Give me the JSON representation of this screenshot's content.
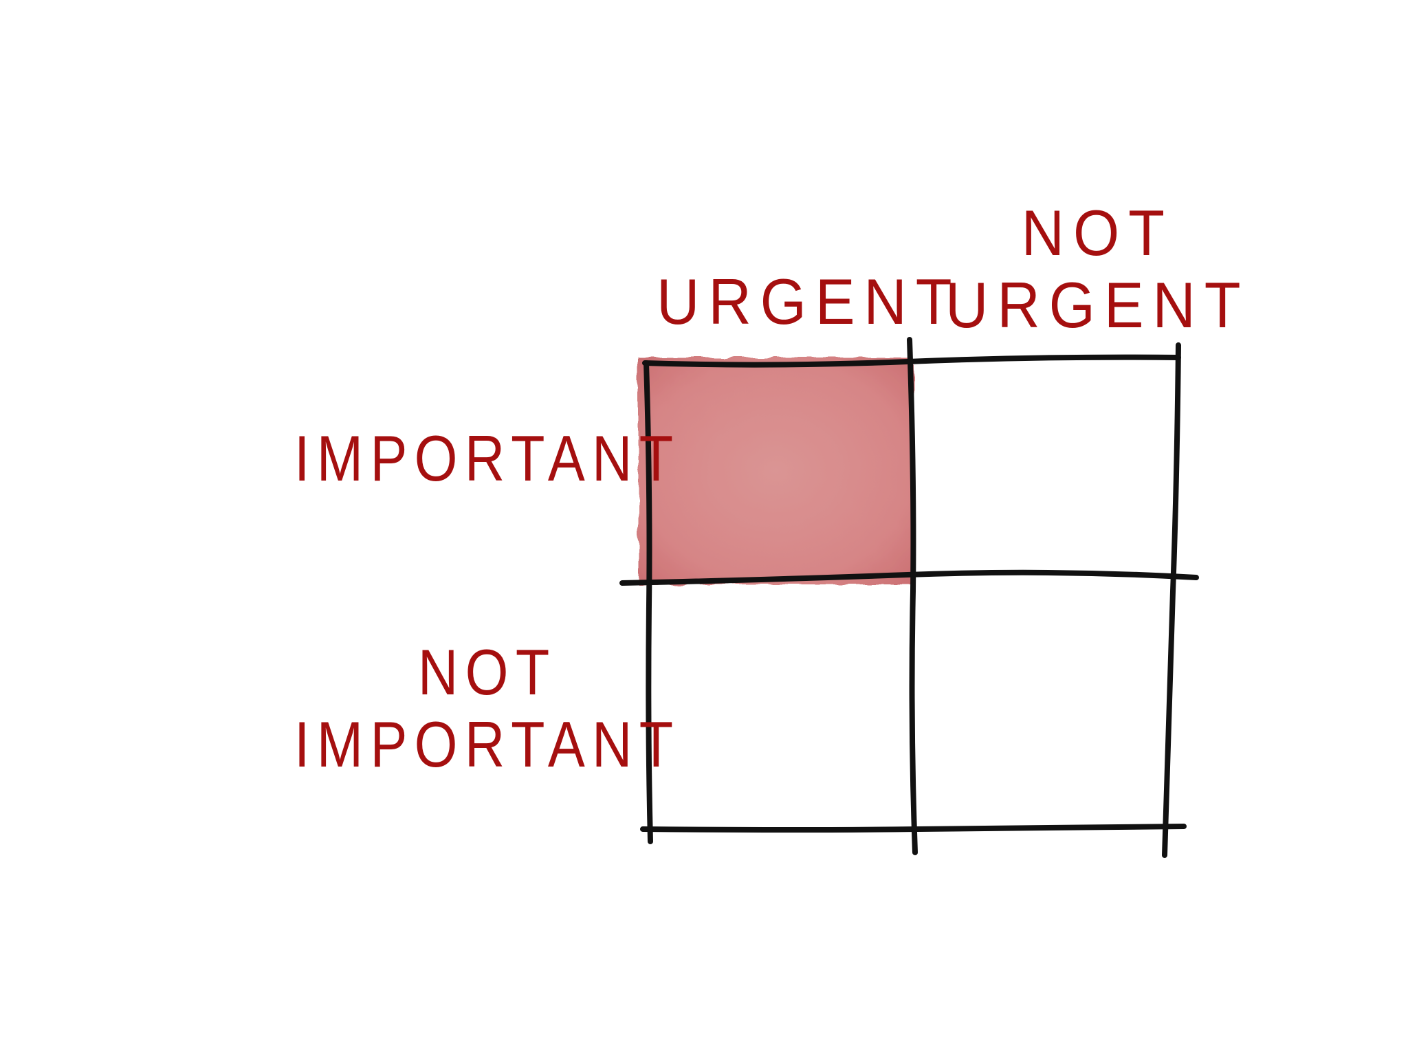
{
  "columns": {
    "urgent": [
      "URGENT"
    ],
    "not_urgent": [
      "NOT",
      "URGENT"
    ]
  },
  "rows": {
    "important": [
      "IMPORTANT"
    ],
    "not_important": [
      "NOT",
      "IMPORTANT"
    ]
  },
  "highlighted_quadrant": "urgent-important",
  "colors": {
    "label": "#a50f0f",
    "grid": "#111111",
    "highlight": "#d8898a",
    "background": "#ffffff"
  }
}
